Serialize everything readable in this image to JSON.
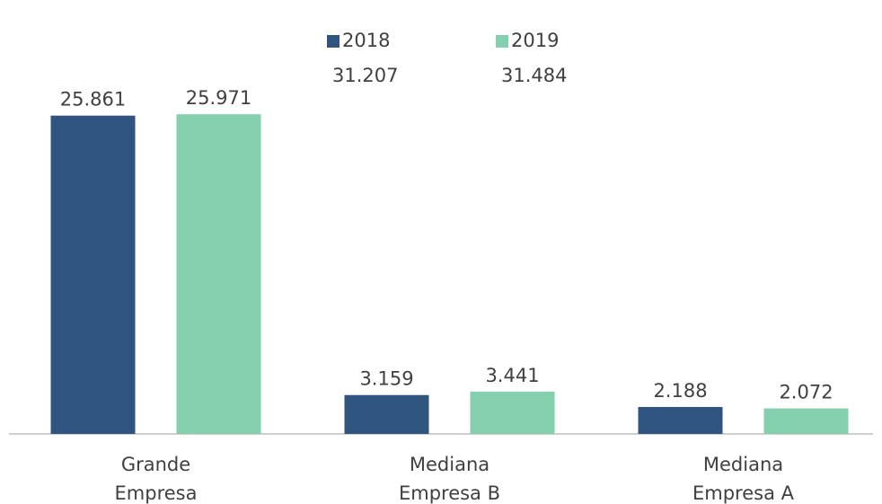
{
  "chart_data": {
    "type": "bar",
    "categories": [
      "Grande Empresa",
      "Mediana Empresa B",
      "Mediana Empresa A"
    ],
    "series": [
      {
        "name": "2018",
        "color": "#2f5480",
        "values": [
          25861,
          3159,
          2188
        ],
        "value_labels": [
          "25.861",
          "3.159",
          "2.188"
        ],
        "total": 31207,
        "total_label": "31.207"
      },
      {
        "name": "2019",
        "color": "#84cfae",
        "values": [
          25971,
          3441,
          2072
        ],
        "value_labels": [
          "25.971",
          "3.441",
          "2.072"
        ],
        "total": 31484,
        "total_label": "31.484"
      }
    ],
    "ylim": [
      0,
      30000
    ],
    "legend": "top",
    "grid": false
  }
}
